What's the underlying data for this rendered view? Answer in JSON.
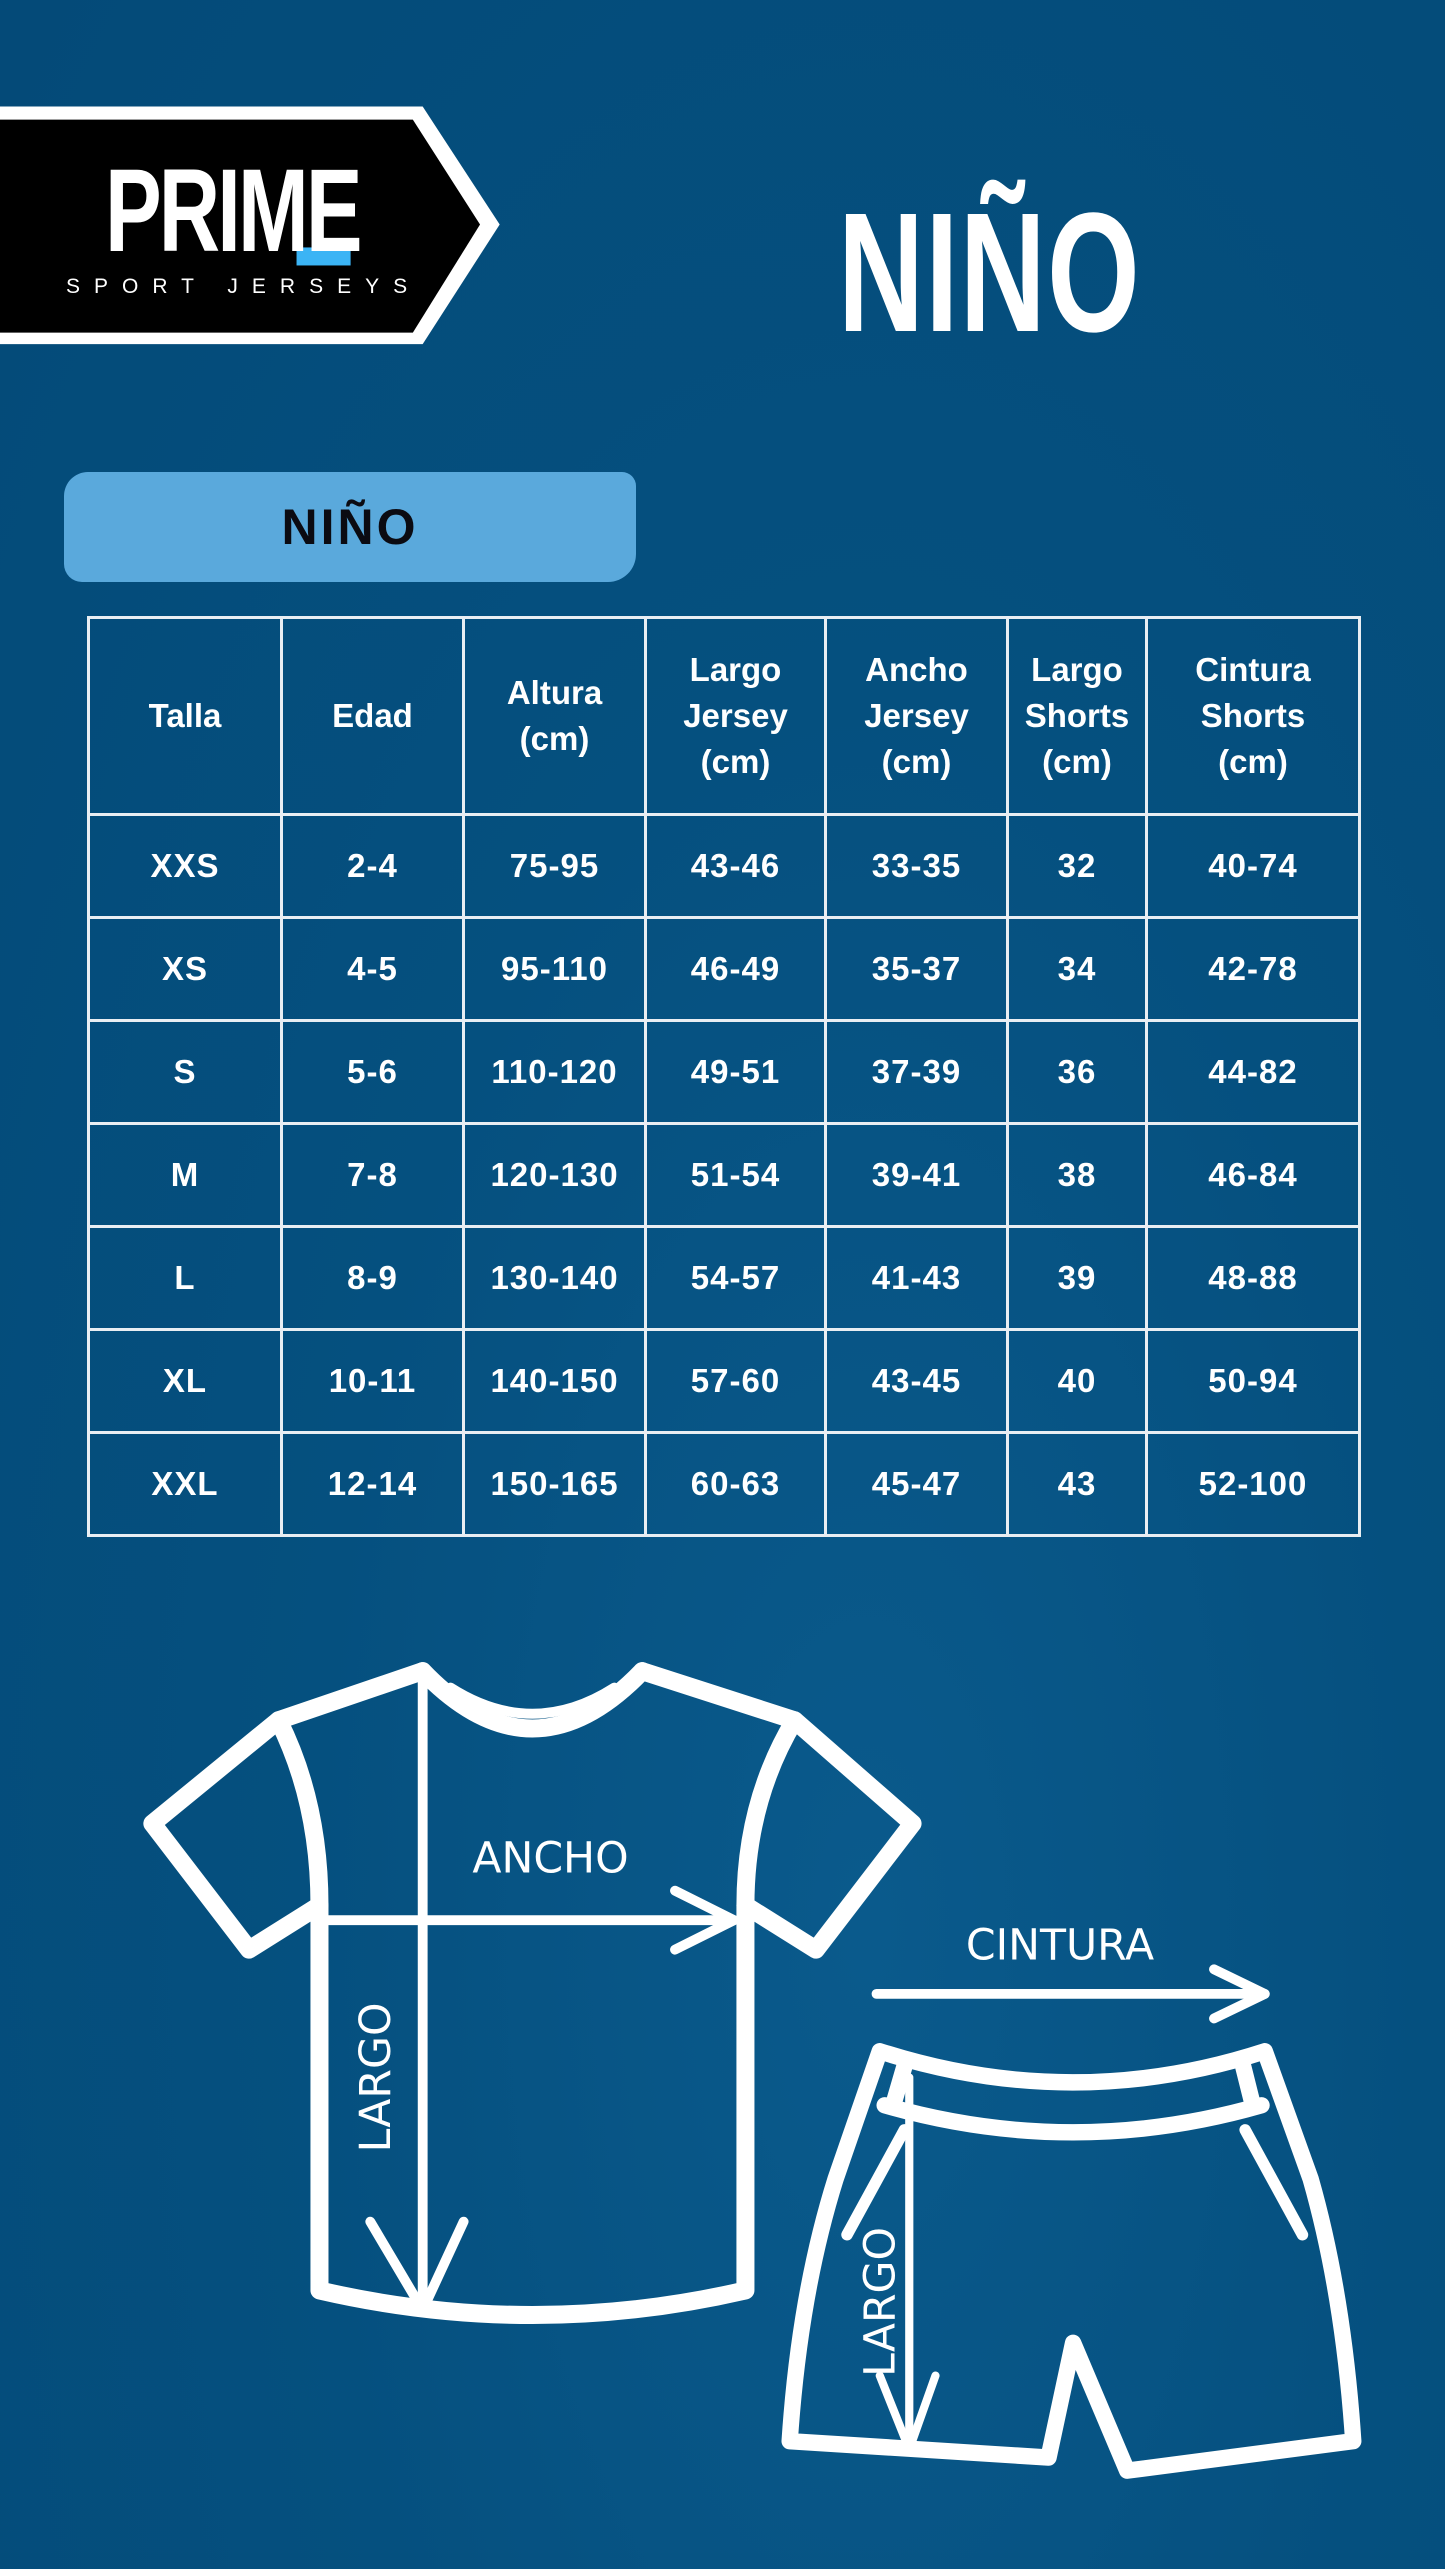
{
  "logo": {
    "brand": "PRIME",
    "tagline": "SPORT JERSEYS",
    "accent_color": "#3bb4f5"
  },
  "header": {
    "title": "NIÑO"
  },
  "section": {
    "label": "NIÑO",
    "pill_color": "#5aa9dc"
  },
  "table": {
    "headers": [
      [
        "Talla"
      ],
      [
        "Edad"
      ],
      [
        "Altura",
        "(cm)"
      ],
      [
        "Largo",
        "Jersey",
        "(cm)"
      ],
      [
        "Ancho",
        "Jersey",
        "(cm)"
      ],
      [
        "Largo",
        "Shorts",
        "(cm)"
      ],
      [
        "Cintura",
        "Shorts",
        "(cm)"
      ]
    ],
    "rows": [
      [
        "XXS",
        "2-4",
        "75-95",
        "43-46",
        "33-35",
        "32",
        "40-74"
      ],
      [
        "XS",
        "4-5",
        "95-110",
        "46-49",
        "35-37",
        "34",
        "42-78"
      ],
      [
        "S",
        "5-6",
        "110-120",
        "49-51",
        "37-39",
        "36",
        "44-82"
      ],
      [
        "M",
        "7-8",
        "120-130",
        "51-54",
        "39-41",
        "38",
        "46-84"
      ],
      [
        "L",
        "8-9",
        "130-140",
        "54-57",
        "41-43",
        "39",
        "48-88"
      ],
      [
        "XL",
        "10-11",
        "140-150",
        "57-60",
        "43-45",
        "40",
        "50-94"
      ],
      [
        "XXL",
        "12-14",
        "150-165",
        "60-63",
        "45-47",
        "43",
        "52-100"
      ]
    ]
  },
  "diagram": {
    "jersey_width_label": "ANCHO",
    "jersey_length_label": "LARGO",
    "shorts_waist_label": "CINTURA",
    "shorts_length_label": "LARGO"
  },
  "colors": {
    "background": "#05507f",
    "lines": "#ffffff"
  }
}
